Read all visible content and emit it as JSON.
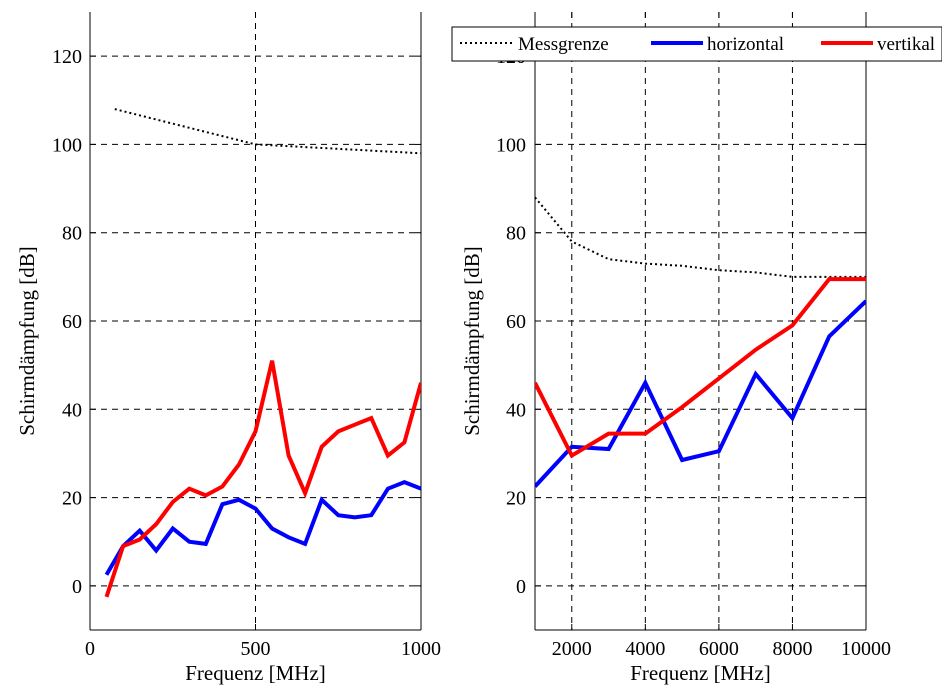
{
  "colors": {
    "messgrenze": "#000000",
    "horizontal": "#0000ff",
    "vertikal": "#ff0000"
  },
  "legend": {
    "items": [
      {
        "label": "Messgrenze",
        "style": "dotted",
        "color": "#000000"
      },
      {
        "label": "horizontal",
        "style": "solid",
        "color": "#0000ff"
      },
      {
        "label": "vertikal",
        "style": "solid",
        "color": "#ff0000"
      }
    ],
    "placement": "top, spanning right panel"
  },
  "chart_data": [
    {
      "type": "line",
      "xlabel": "Frequenz [MHz]",
      "ylabel": "Schirmdämpfung [dB]",
      "xlim": [
        0,
        1000
      ],
      "ylim": [
        -10,
        130
      ],
      "xticks": [
        0,
        500,
        1000
      ],
      "yticks": [
        0,
        20,
        40,
        60,
        80,
        100,
        120
      ],
      "grid": true,
      "series": [
        {
          "name": "Messgrenze",
          "color": "#000000",
          "style": "dotted",
          "x": [
            75,
            500,
            1000
          ],
          "y": [
            108,
            100,
            98
          ]
        },
        {
          "name": "horizontal",
          "color": "#0000ff",
          "style": "solid",
          "x": [
            50,
            100,
            150,
            200,
            250,
            300,
            350,
            400,
            450,
            500,
            550,
            600,
            650,
            700,
            750,
            800,
            850,
            900,
            950,
            1000
          ],
          "y": [
            2.5,
            9,
            12.5,
            8,
            13,
            10,
            9.5,
            18.5,
            19.5,
            17.5,
            13,
            11,
            9.5,
            19.5,
            16,
            15.5,
            16,
            22,
            23.5,
            22
          ]
        },
        {
          "name": "vertikal",
          "color": "#ff0000",
          "style": "solid",
          "x": [
            50,
            100,
            150,
            200,
            250,
            300,
            350,
            400,
            450,
            500,
            550,
            600,
            650,
            700,
            750,
            800,
            850,
            900,
            950,
            1000
          ],
          "y": [
            -2.5,
            9,
            10.5,
            14,
            19,
            22,
            20.5,
            22.5,
            27.5,
            35,
            51,
            29.5,
            21,
            31.5,
            35,
            36.5,
            38,
            29.5,
            32.5,
            46
          ]
        }
      ]
    },
    {
      "type": "line",
      "xlabel": "Frequenz [MHz]",
      "ylabel": "Schirmdämpfung [dB]",
      "xlim": [
        1000,
        10000
      ],
      "ylim": [
        -10,
        130
      ],
      "xticks": [
        2000,
        4000,
        6000,
        8000,
        10000
      ],
      "yticks": [
        0,
        20,
        40,
        60,
        80,
        100,
        120
      ],
      "grid": true,
      "series": [
        {
          "name": "Messgrenze",
          "color": "#000000",
          "style": "dotted",
          "x": [
            1000,
            2000,
            3000,
            4000,
            5000,
            6000,
            7000,
            8000,
            9000,
            10000
          ],
          "y": [
            88,
            78,
            74,
            73,
            72.5,
            71.5,
            71,
            70,
            70,
            70
          ]
        },
        {
          "name": "horizontal",
          "color": "#0000ff",
          "style": "solid",
          "x": [
            1000,
            2000,
            3000,
            4000,
            5000,
            6000,
            7000,
            8000,
            9000,
            10000
          ],
          "y": [
            22.5,
            31.5,
            31,
            46,
            28.5,
            30.5,
            48,
            38,
            56.5,
            64.5
          ]
        },
        {
          "name": "vertikal",
          "color": "#ff0000",
          "style": "solid",
          "x": [
            1000,
            2000,
            3000,
            4000,
            5000,
            6000,
            7000,
            8000,
            9000,
            10000
          ],
          "y": [
            46,
            29.5,
            34.5,
            34.5,
            40.5,
            47,
            53.5,
            59,
            69.5,
            69.5
          ]
        }
      ]
    }
  ]
}
